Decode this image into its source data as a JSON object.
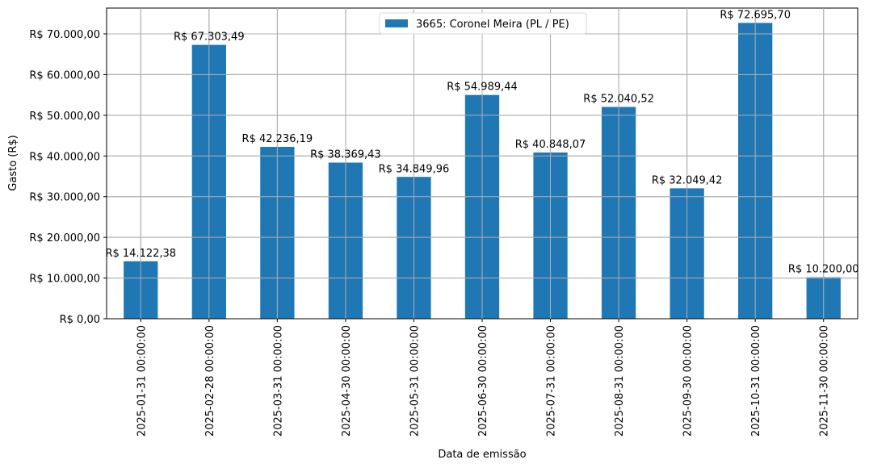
{
  "chart_data": {
    "type": "bar",
    "title": "",
    "xlabel": "Data de emissão",
    "ylabel": "Gasto (R$)",
    "ylim": [
      0,
      76345
    ],
    "grid": true,
    "legend_position": "upper center",
    "categories": [
      "2025-01-31 00:00:00",
      "2025-02-28 00:00:00",
      "2025-03-31 00:00:00",
      "2025-04-30 00:00:00",
      "2025-05-31 00:00:00",
      "2025-06-30 00:00:00",
      "2025-07-31 00:00:00",
      "2025-08-31 00:00:00",
      "2025-09-30 00:00:00",
      "2025-10-31 00:00:00",
      "2025-11-30 00:00:00"
    ],
    "series": [
      {
        "name": "3665: Coronel Meira (PL / PE)",
        "color": "#1f77b4",
        "values": [
          14122.38,
          67303.49,
          42236.19,
          38369.43,
          34849.96,
          54989.44,
          40848.07,
          52040.52,
          32049.42,
          72695.7,
          10200.0
        ],
        "labels": [
          "R$ 14.122,38",
          "R$ 67.303,49",
          "R$ 42.236,19",
          "R$ 38.369,43",
          "R$ 34.849,96",
          "R$ 54.989,44",
          "R$ 40.848,07",
          "R$ 52.040,52",
          "R$ 32.049,42",
          "R$ 72.695,70",
          "R$ 10.200,00"
        ]
      }
    ],
    "yticks": [
      {
        "value": 0,
        "label": "R$ 0,00"
      },
      {
        "value": 10000,
        "label": "R$ 10.000,00"
      },
      {
        "value": 20000,
        "label": "R$ 20.000,00"
      },
      {
        "value": 30000,
        "label": "R$ 30.000,00"
      },
      {
        "value": 40000,
        "label": "R$ 40.000,00"
      },
      {
        "value": 50000,
        "label": "R$ 50.000,00"
      },
      {
        "value": 60000,
        "label": "R$ 60.000,00"
      },
      {
        "value": 70000,
        "label": "R$ 70.000,00"
      }
    ]
  },
  "colors": {
    "bar": "#1f77b4",
    "grid": "#b0b0b0",
    "axis": "#000000",
    "background": "#ffffff"
  }
}
